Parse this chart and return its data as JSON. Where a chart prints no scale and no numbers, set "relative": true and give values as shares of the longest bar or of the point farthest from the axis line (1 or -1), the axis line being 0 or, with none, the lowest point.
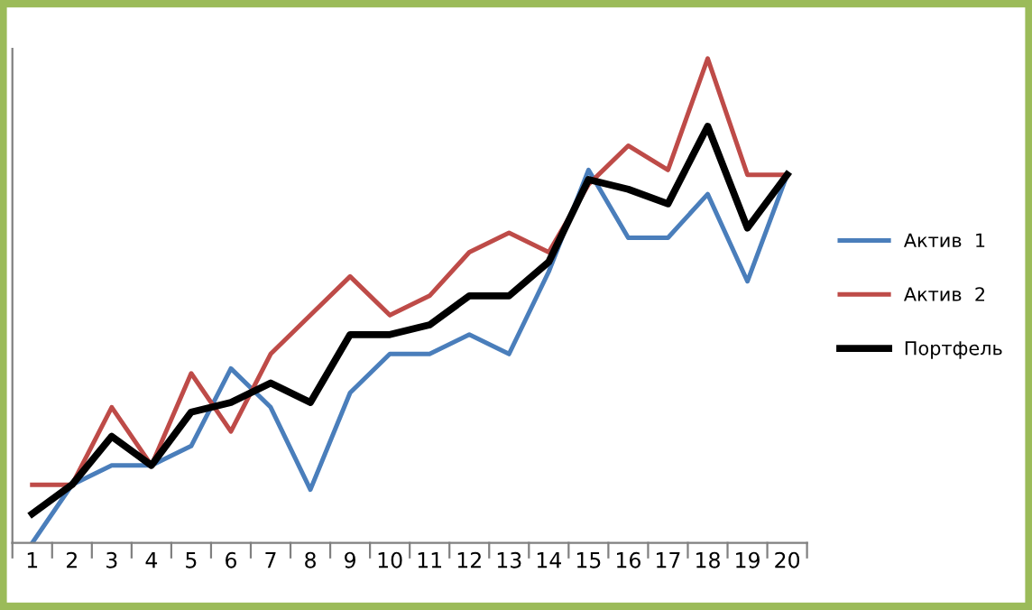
{
  "chart_data": {
    "type": "line",
    "relative": true,
    "legend": "right",
    "grid": false,
    "marker": "none",
    "line_style": "solid",
    "categories": [
      "1",
      "2",
      "3",
      "4",
      "5",
      "6",
      "7",
      "8",
      "9",
      "10",
      "11",
      "12",
      "13",
      "14",
      "15",
      "16",
      "17",
      "18",
      "19",
      "20"
    ],
    "series": [
      {
        "name": "Актив  1",
        "color": "#4a7ebb",
        "values": [
          0.0,
          0.12,
          0.16,
          0.16,
          0.2,
          0.36,
          0.28,
          0.11,
          0.31,
          0.39,
          0.39,
          0.43,
          0.39,
          0.56,
          0.77,
          0.63,
          0.63,
          0.72,
          0.54,
          0.76
        ]
      },
      {
        "name": "Актив  2",
        "color": "#be4b48",
        "values": [
          0.12,
          0.12,
          0.28,
          0.16,
          0.35,
          0.23,
          0.39,
          0.47,
          0.55,
          0.47,
          0.51,
          0.6,
          0.64,
          0.6,
          0.74,
          0.82,
          0.77,
          1.0,
          0.76,
          0.76
        ]
      },
      {
        "name": "Портфель",
        "color": "#000000",
        "values": [
          0.06,
          0.12,
          0.22,
          0.16,
          0.27,
          0.29,
          0.33,
          0.29,
          0.43,
          0.43,
          0.45,
          0.51,
          0.51,
          0.58,
          0.75,
          0.73,
          0.7,
          0.86,
          0.65,
          0.76
        ]
      }
    ]
  }
}
